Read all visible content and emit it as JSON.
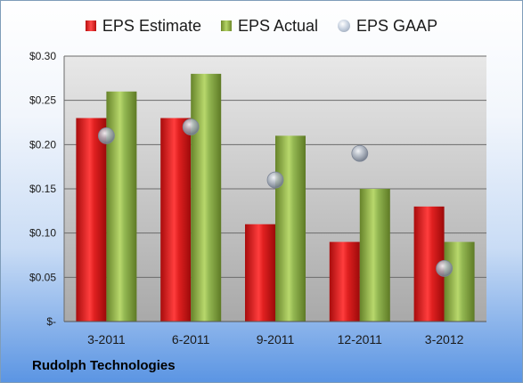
{
  "chart_data": {
    "type": "bar",
    "categories": [
      "3-2011",
      "6-2011",
      "9-2011",
      "12-2011",
      "3-2012"
    ],
    "series": [
      {
        "name": "EPS Estimate",
        "values": [
          0.23,
          0.23,
          0.11,
          0.09,
          0.13
        ],
        "color": "#d81e1e"
      },
      {
        "name": "EPS Actual",
        "values": [
          0.26,
          0.28,
          0.21,
          0.15,
          0.09
        ],
        "color": "#8db34a"
      },
      {
        "name": "EPS GAAP",
        "values": [
          0.21,
          0.22,
          0.16,
          0.19,
          0.06
        ],
        "color": "#a8b3c4",
        "marker": "circle"
      }
    ],
    "ylim": [
      0,
      0.3
    ],
    "yticks": [
      {
        "value": 0,
        "label": "$-"
      },
      {
        "value": 0.05,
        "label": "$0.05"
      },
      {
        "value": 0.1,
        "label": "$0.10"
      },
      {
        "value": 0.15,
        "label": "$0.15"
      },
      {
        "value": 0.2,
        "label": "$0.20"
      },
      {
        "value": 0.25,
        "label": "$0.25"
      },
      {
        "value": 0.3,
        "label": "$0.30"
      }
    ],
    "grid": true,
    "legend_position": "top"
  },
  "company": "Rudolph Technologies"
}
